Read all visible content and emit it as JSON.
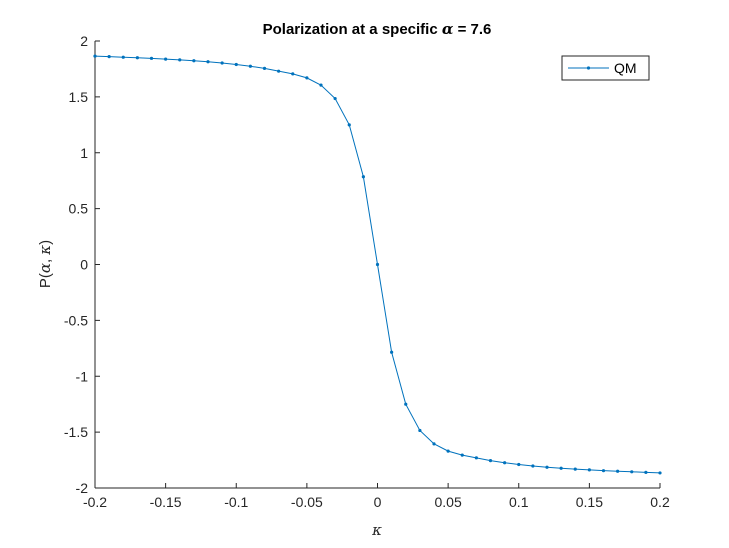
{
  "chart_data": {
    "type": "line",
    "title_prefix": "Polarization at a specific ",
    "title_symbol": "α",
    "title_suffix": " = 7.6",
    "xlabel_symbol": "κ",
    "ylabel_prefix": "P(",
    "ylabel_symbol_a": "α",
    "ylabel_sep": ", ",
    "ylabel_symbol_b": "κ",
    "ylabel_suffix": ")",
    "xlim": [
      -0.2,
      0.2
    ],
    "ylim": [
      -2,
      2
    ],
    "xticks": [
      -0.2,
      -0.15,
      -0.1,
      -0.05,
      0,
      0.05,
      0.1,
      0.15,
      0.2
    ],
    "xtick_labels": [
      "-0.2",
      "-0.15",
      "-0.1",
      "-0.05",
      "0",
      "0.05",
      "0.1",
      "0.15",
      "0.2"
    ],
    "yticks": [
      -2,
      -1.5,
      -1,
      -0.5,
      0,
      0.5,
      1,
      1.5,
      2
    ],
    "ytick_labels": [
      "-2",
      "-1.5",
      "-1",
      "-0.5",
      "0",
      "0.5",
      "1",
      "1.5",
      "2"
    ],
    "grid": false,
    "legend_position": "top-right",
    "series": [
      {
        "name": "QM",
        "color": "#0072BD",
        "x": [
          -0.2,
          -0.19,
          -0.18,
          -0.17,
          -0.16,
          -0.15,
          -0.14,
          -0.13,
          -0.12,
          -0.11,
          -0.1,
          -0.09,
          -0.08,
          -0.07,
          -0.06,
          -0.05,
          -0.04,
          -0.03,
          -0.02,
          -0.01,
          0,
          0.01,
          0.02,
          0.03,
          0.04,
          0.05,
          0.06,
          0.07,
          0.08,
          0.09,
          0.1,
          0.11,
          0.12,
          0.13,
          0.14,
          0.15,
          0.16,
          0.17,
          0.18,
          0.19,
          0.2
        ],
        "y": [
          1.865,
          1.86,
          1.855,
          1.85,
          1.845,
          1.838,
          1.831,
          1.823,
          1.814,
          1.803,
          1.79,
          1.774,
          1.755,
          1.73,
          1.706,
          1.67,
          1.605,
          1.485,
          1.25,
          0.785,
          0.0,
          -0.785,
          -1.25,
          -1.485,
          -1.605,
          -1.67,
          -1.706,
          -1.73,
          -1.755,
          -1.774,
          -1.79,
          -1.803,
          -1.814,
          -1.823,
          -1.831,
          -1.838,
          -1.845,
          -1.85,
          -1.855,
          -1.86,
          -1.865
        ]
      }
    ]
  }
}
